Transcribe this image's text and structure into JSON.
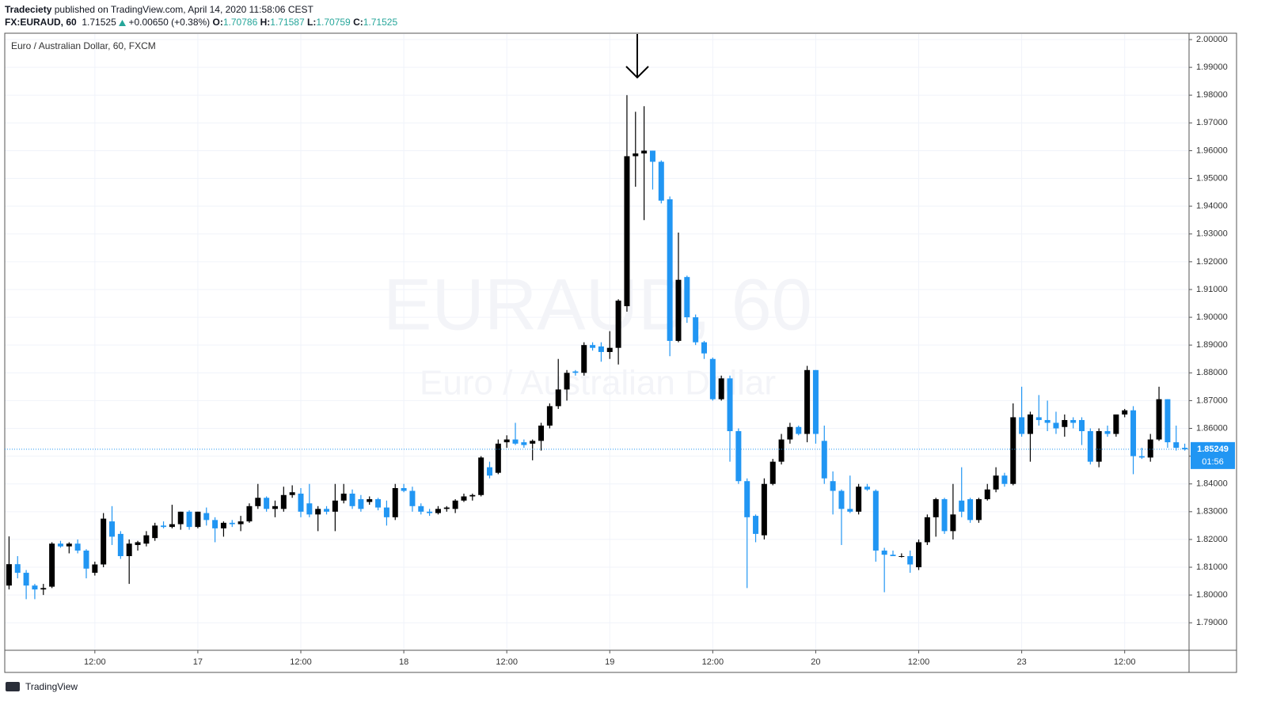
{
  "header": {
    "publisher": "Tradeciety",
    "published": "published on TradingView.com, April 14, 2020 11:58:06 CEST",
    "symbol": "FX:EURAUD, 60",
    "last": "1.71525",
    "change": "+0.00650 (+0.38%)",
    "ohlc": [
      {
        "label": "O:",
        "value": "1.70786"
      },
      {
        "label": "H:",
        "value": "1.71587"
      },
      {
        "label": "L:",
        "value": "1.70759"
      },
      {
        "label": "C:",
        "value": "1.71525"
      }
    ]
  },
  "chart_data": {
    "type": "candlestick",
    "legend": "Euro / Australian Dollar, 60, FXCM",
    "watermark": "EURAUD, 60",
    "watermark_subtitle": "Euro / Australian Dollar",
    "countdown": "01:56",
    "footer": "TradingView",
    "up_color": "#000000",
    "down_color": "#2196f3",
    "grid": true,
    "categories": [
      null,
      null,
      null,
      null,
      null,
      null,
      null,
      null,
      null,
      null,
      "12:00",
      null,
      null,
      null,
      null,
      null,
      null,
      null,
      null,
      null,
      null,
      null,
      "17",
      null,
      null,
      null,
      null,
      null,
      null,
      null,
      null,
      null,
      null,
      null,
      "12:00",
      null,
      null,
      null,
      null,
      null,
      null,
      null,
      null,
      null,
      null,
      null,
      "18",
      null,
      null,
      null,
      null,
      null,
      null,
      null,
      null,
      null,
      null,
      null,
      "12:00",
      null,
      null,
      null,
      null,
      null,
      null,
      null,
      null,
      null,
      null,
      null,
      "19",
      null,
      null,
      null,
      null,
      null,
      null,
      null,
      null,
      null,
      null,
      null,
      "12:00",
      null,
      null,
      null,
      null,
      null,
      null,
      null,
      null,
      null,
      null,
      null,
      "20",
      null,
      null,
      null,
      null,
      null,
      null,
      null,
      null,
      null,
      null,
      null,
      "12:00",
      null,
      null,
      null,
      null,
      null,
      null,
      null,
      null,
      null,
      null,
      null,
      "23",
      null,
      null,
      null,
      null,
      null,
      null,
      null,
      null,
      null,
      null,
      null,
      "12:00",
      null,
      null,
      null,
      null,
      null,
      null,
      null
    ],
    "open": [
      1.8034,
      1.8111,
      1.808,
      1.8034,
      1.802,
      1.803,
      1.8185,
      1.8175,
      1.8185,
      1.816,
      1.808,
      1.811,
      1.8265,
      1.822,
      1.814,
      1.818,
      1.8185,
      1.8205,
      1.825,
      1.8245,
      1.8255,
      1.83,
      1.8245,
      1.8295,
      1.827,
      1.824,
      1.826,
      1.8255,
      1.8265,
      1.832,
      1.835,
      1.831,
      1.831,
      1.836,
      1.8365,
      1.833,
      1.829,
      1.831,
      1.83,
      1.834,
      1.8365,
      1.8345,
      1.8335,
      1.8345,
      1.8315,
      1.828,
      1.8385,
      1.8375,
      1.832,
      1.83,
      1.8295,
      1.831,
      1.831,
      1.834,
      1.8355,
      1.836,
      1.846,
      1.844,
      1.855,
      1.856,
      1.855,
      1.8545,
      1.8555,
      1.861,
      1.868,
      1.874,
      1.8805,
      1.88,
      1.89,
      1.8895,
      1.8875,
      1.889,
      1.904,
      1.958,
      1.959,
      1.96,
      1.956,
      1.9425,
      1.8915,
      1.9145,
      1.9,
      1.891,
      1.885,
      1.8705,
      1.878,
      1.859,
      1.841,
      1.8285,
      1.8215,
      1.84,
      1.848,
      1.856,
      1.8605,
      1.858,
      1.881,
      1.8555,
      1.841,
      1.8375,
      1.831,
      1.83,
      1.839,
      1.8375,
      1.816,
      1.8145,
      1.814,
      1.814,
      1.81,
      1.819,
      1.828,
      1.8345,
      1.823,
      1.834,
      1.8345,
      1.827,
      1.8345,
      1.838,
      1.843,
      1.84,
      1.864,
      1.858,
      1.864,
      1.863,
      1.862,
      1.8605,
      1.863,
      1.863,
      1.859,
      1.848,
      1.859,
      1.858,
      1.865,
      1.8665,
      1.85,
      1.8495,
      1.856,
      1.8705,
      1.855,
      1.853
    ],
    "high": [
      1.8211,
      1.814,
      1.809,
      1.804,
      1.804,
      1.819,
      1.8195,
      1.819,
      1.82,
      1.8165,
      1.812,
      1.8295,
      1.832,
      1.823,
      1.82,
      1.8195,
      1.823,
      1.826,
      1.8265,
      1.8325,
      1.83,
      1.8305,
      1.83,
      1.8315,
      1.828,
      1.8265,
      1.827,
      1.8285,
      1.833,
      1.84,
      1.8355,
      1.834,
      1.839,
      1.8395,
      1.8385,
      1.84,
      1.832,
      1.832,
      1.84,
      1.84,
      1.838,
      1.836,
      1.8355,
      1.835,
      1.834,
      1.84,
      1.84,
      1.839,
      1.833,
      1.831,
      1.832,
      1.832,
      1.8345,
      1.8365,
      1.8365,
      1.85,
      1.848,
      1.856,
      1.8575,
      1.862,
      1.856,
      1.856,
      1.862,
      1.869,
      1.885,
      1.881,
      1.881,
      1.891,
      1.891,
      1.891,
      1.895,
      1.9065,
      1.98,
      1.974,
      1.976,
      1.96,
      1.9565,
      1.9435,
      1.9305,
      1.915,
      1.901,
      1.8915,
      1.8855,
      1.879,
      1.879,
      1.86,
      1.842,
      1.829,
      1.842,
      1.849,
      1.858,
      1.862,
      1.861,
      1.8825,
      1.881,
      1.861,
      1.8445,
      1.838,
      1.843,
      1.84,
      1.84,
      1.838,
      1.817,
      1.816,
      1.815,
      1.816,
      1.82,
      1.829,
      1.835,
      1.835,
      1.84,
      1.846,
      1.835,
      1.835,
      1.84,
      1.846,
      1.844,
      1.869,
      1.875,
      1.866,
      1.872,
      1.87,
      1.866,
      1.865,
      1.864,
      1.864,
      1.86,
      1.86,
      1.861,
      1.865,
      1.867,
      1.868,
      1.853,
      1.858,
      1.875,
      1.8705,
      1.861,
      1.8545
    ],
    "low": [
      1.802,
      1.806,
      1.7985,
      1.7985,
      1.8,
      1.8025,
      1.817,
      1.815,
      1.815,
      1.806,
      1.807,
      1.81,
      1.818,
      1.813,
      1.804,
      1.816,
      1.8175,
      1.8195,
      1.824,
      1.824,
      1.8235,
      1.8235,
      1.824,
      1.825,
      1.819,
      1.821,
      1.8245,
      1.823,
      1.826,
      1.831,
      1.83,
      1.828,
      1.83,
      1.835,
      1.828,
      1.828,
      1.823,
      1.829,
      1.823,
      1.833,
      1.831,
      1.83,
      1.8325,
      1.8305,
      1.825,
      1.827,
      1.837,
      1.83,
      1.829,
      1.8285,
      1.829,
      1.83,
      1.8295,
      1.8335,
      1.834,
      1.8355,
      1.842,
      1.8435,
      1.853,
      1.854,
      1.853,
      1.8485,
      1.852,
      1.86,
      1.867,
      1.87,
      1.879,
      1.879,
      1.888,
      1.884,
      1.885,
      1.883,
      1.902,
      1.947,
      1.935,
      1.946,
      1.941,
      1.886,
      1.891,
      1.898,
      1.89,
      1.885,
      1.87,
      1.87,
      1.848,
      1.84,
      1.8025,
      1.819,
      1.82,
      1.8395,
      1.847,
      1.8545,
      1.8575,
      1.855,
      1.8545,
      1.84,
      1.829,
      1.818,
      1.8295,
      1.829,
      1.8375,
      1.812,
      1.801,
      1.814,
      1.8135,
      1.808,
      1.809,
      1.818,
      1.821,
      1.822,
      1.82,
      1.828,
      1.826,
      1.826,
      1.834,
      1.837,
      1.839,
      1.8395,
      1.857,
      1.848,
      1.861,
      1.859,
      1.858,
      1.857,
      1.86,
      1.854,
      1.847,
      1.846,
      1.857,
      1.857,
      1.864,
      1.8435,
      1.849,
      1.848,
      1.8555,
      1.853,
      1.852,
      1.852
    ],
    "close": [
      1.8111,
      1.808,
      1.8034,
      1.802,
      1.8025,
      1.8185,
      1.8175,
      1.8185,
      1.816,
      1.8095,
      1.811,
      1.8275,
      1.821,
      1.814,
      1.8185,
      1.819,
      1.8215,
      1.825,
      1.8245,
      1.8255,
      1.83,
      1.8245,
      1.83,
      1.827,
      1.824,
      1.826,
      1.8255,
      1.8265,
      1.832,
      1.835,
      1.831,
      1.832,
      1.836,
      1.837,
      1.83,
      1.829,
      1.831,
      1.83,
      1.834,
      1.8365,
      1.832,
      1.831,
      1.8345,
      1.8315,
      1.828,
      1.8385,
      1.8375,
      1.832,
      1.83,
      1.8295,
      1.831,
      1.8315,
      1.834,
      1.8355,
      1.836,
      1.8495,
      1.843,
      1.8545,
      1.856,
      1.8545,
      1.854,
      1.8555,
      1.861,
      1.868,
      1.874,
      1.88,
      1.88,
      1.89,
      1.889,
      1.8875,
      1.889,
      1.906,
      1.958,
      1.959,
      1.96,
      1.956,
      1.942,
      1.8915,
      1.9135,
      1.9,
      1.891,
      1.887,
      1.8705,
      1.878,
      1.859,
      1.841,
      1.828,
      1.822,
      1.84,
      1.848,
      1.856,
      1.8605,
      1.858,
      1.881,
      1.858,
      1.842,
      1.8375,
      1.831,
      1.83,
      1.839,
      1.838,
      1.816,
      1.8145,
      1.814,
      1.814,
      1.811,
      1.819,
      1.828,
      1.8345,
      1.823,
      1.829,
      1.83,
      1.827,
      1.8345,
      1.838,
      1.843,
      1.84,
      1.864,
      1.858,
      1.865,
      1.863,
      1.862,
      1.86,
      1.863,
      1.862,
      1.859,
      1.848,
      1.859,
      1.858,
      1.865,
      1.8665,
      1.85,
      1.8495,
      1.856,
      1.8705,
      1.855,
      1.853,
      1.85249
    ],
    "ylim": [
      1.7801,
      2.002
    ],
    "yticks": [
      {
        "value": 1.79,
        "label": "1.79000"
      },
      {
        "value": 1.8,
        "label": "1.80000"
      },
      {
        "value": 1.81,
        "label": "1.81000"
      },
      {
        "value": 1.82,
        "label": "1.82000"
      },
      {
        "value": 1.83,
        "label": "1.83000"
      },
      {
        "value": 1.84,
        "label": "1.84000"
      },
      {
        "value": 1.85,
        "label": "1.85000"
      },
      {
        "value": 1.86,
        "label": "1.86000"
      },
      {
        "value": 1.87,
        "label": "1.87000"
      },
      {
        "value": 1.88,
        "label": "1.88000"
      },
      {
        "value": 1.89,
        "label": "1.89000"
      },
      {
        "value": 1.9,
        "label": "1.90000"
      },
      {
        "value": 1.91,
        "label": "1.91000"
      },
      {
        "value": 1.92,
        "label": "1.92000"
      },
      {
        "value": 1.93,
        "label": "1.93000"
      },
      {
        "value": 1.94,
        "label": "1.94000"
      },
      {
        "value": 1.95,
        "label": "1.95000"
      },
      {
        "value": 1.96,
        "label": "1.96000"
      },
      {
        "value": 1.97,
        "label": "1.97000"
      },
      {
        "value": 1.98,
        "label": "1.98000"
      },
      {
        "value": 1.99,
        "label": "1.99000"
      },
      {
        "value": 2,
        "label": "2.00000"
      }
    ]
  }
}
